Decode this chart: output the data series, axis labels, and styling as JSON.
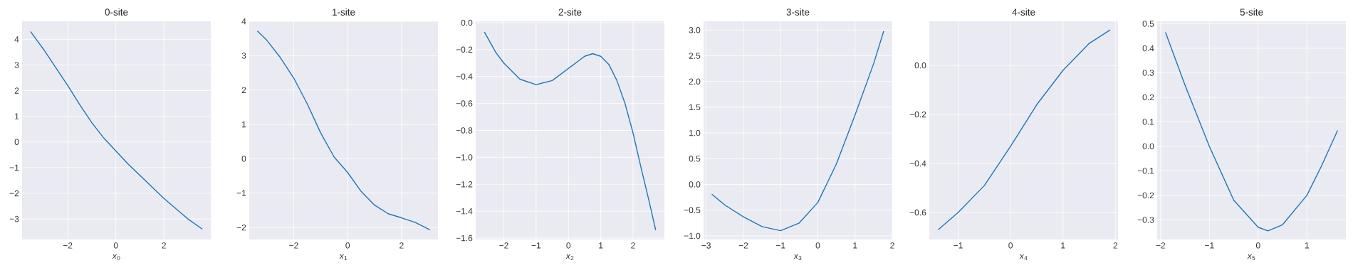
{
  "chart_data": [
    {
      "type": "line",
      "title": "0-site",
      "xlabel": "*x*$_{0}$",
      "color": "#1f77b4",
      "grid": true,
      "x": [
        -3.55,
        -3,
        -2.5,
        -2,
        -1.5,
        -1,
        -0.5,
        0,
        0.5,
        1,
        1.5,
        2,
        2.5,
        3,
        3.6
      ],
      "values": [
        4.3,
        3.6,
        2.9,
        2.2,
        1.45,
        0.75,
        0.15,
        -0.35,
        -0.85,
        -1.3,
        -1.75,
        -2.2,
        -2.6,
        -3.0,
        -3.4
      ],
      "xlim": [
        -3.9,
        3.95
      ],
      "ylim": [
        -3.8,
        4.7
      ],
      "xticks": [
        {
          "value": -2,
          "label": "−2"
        },
        0,
        2
      ],
      "yticks": [
        {
          "value": -3,
          "label": "−3"
        },
        {
          "value": -2,
          "label": "−2"
        },
        {
          "value": -1,
          "label": "−1"
        },
        0,
        1,
        2,
        3,
        4
      ]
    },
    {
      "type": "line",
      "title": "1-site",
      "xlabel": "*x*$_{1}$",
      "color": "#1f77b4",
      "grid": true,
      "x": [
        -3.35,
        -3,
        -2.5,
        -2,
        -1.5,
        -1,
        -0.5,
        0,
        0.5,
        1,
        1.5,
        2,
        2.5,
        3.05
      ],
      "values": [
        3.72,
        3.45,
        2.95,
        2.35,
        1.6,
        0.75,
        0.05,
        -0.4,
        -0.95,
        -1.35,
        -1.6,
        -1.72,
        -1.85,
        -2.07
      ],
      "xlim": [
        -3.65,
        3.35
      ],
      "ylim": [
        -2.35,
        4.0
      ],
      "xticks": [
        {
          "value": -2,
          "label": "−2"
        },
        0,
        2
      ],
      "yticks": [
        {
          "value": -2,
          "label": "−2"
        },
        {
          "value": -1,
          "label": "−1"
        },
        0,
        1,
        2,
        3,
        4
      ]
    },
    {
      "type": "line",
      "title": "2-site",
      "xlabel": "*x*$_{2}$",
      "color": "#1f77b4",
      "grid": true,
      "x": [
        -2.6,
        -2.25,
        -2,
        -1.5,
        -1,
        -0.5,
        0,
        0.5,
        0.75,
        1,
        1.25,
        1.5,
        1.75,
        2,
        2.25,
        2.5,
        2.7
      ],
      "values": [
        -0.07,
        -0.22,
        -0.3,
        -0.42,
        -0.46,
        -0.43,
        -0.34,
        -0.25,
        -0.23,
        -0.25,
        -0.31,
        -0.43,
        -0.6,
        -0.82,
        -1.08,
        -1.33,
        -1.54
      ],
      "xlim": [
        -2.87,
        2.97
      ],
      "ylim": [
        -1.61,
        0.01
      ],
      "xticks": [
        {
          "value": -2,
          "label": "−2"
        },
        {
          "value": -1,
          "label": "−1"
        },
        0,
        1,
        2
      ],
      "yticks": [
        {
          "value": -1.6,
          "label": "−1.6"
        },
        {
          "value": -1.4,
          "label": "−1.4"
        },
        {
          "value": -1.2,
          "label": "−1.2"
        },
        {
          "value": -1.0,
          "label": "−1.0"
        },
        {
          "value": -0.8,
          "label": "−0.8"
        },
        {
          "value": -0.6,
          "label": "−0.6"
        },
        {
          "value": -0.4,
          "label": "−0.4"
        },
        {
          "value": -0.2,
          "label": "−0.2"
        },
        {
          "value": 0,
          "label": "0.0"
        }
      ]
    },
    {
      "type": "line",
      "title": "3-site",
      "xlabel": "*x*$_{3}$",
      "color": "#1f77b4",
      "grid": true,
      "x": [
        -2.85,
        -2.5,
        -2,
        -1.5,
        -1,
        -0.5,
        0,
        0.5,
        1,
        1.5,
        1.77
      ],
      "values": [
        -0.19,
        -0.4,
        -0.63,
        -0.82,
        -0.9,
        -0.75,
        -0.35,
        0.4,
        1.35,
        2.35,
        2.98
      ],
      "xlim": [
        -3.07,
        2.0
      ],
      "ylim": [
        -1.07,
        3.17
      ],
      "xticks": [
        {
          "value": -3,
          "label": "−3"
        },
        {
          "value": -2,
          "label": "−2"
        },
        {
          "value": -1,
          "label": "−1"
        },
        0,
        1,
        2
      ],
      "yticks": [
        {
          "value": -1.0,
          "label": "−1.0"
        },
        {
          "value": -0.5,
          "label": "−0.5"
        },
        {
          "value": 0,
          "label": "0.0"
        },
        0.5,
        {
          "value": 1,
          "label": "1.0"
        },
        1.5,
        {
          "value": 2,
          "label": "2.0"
        },
        2.5,
        {
          "value": 3,
          "label": "3.0"
        }
      ]
    },
    {
      "type": "line",
      "title": "4-site",
      "xlabel": "*x*$_{4}$",
      "color": "#1f77b4",
      "grid": true,
      "x": [
        -1.38,
        -1,
        -0.5,
        0,
        0.5,
        1,
        1.5,
        1.9
      ],
      "values": [
        -0.67,
        -0.6,
        -0.49,
        -0.33,
        -0.16,
        -0.02,
        0.09,
        0.145
      ],
      "xlim": [
        -1.55,
        2.05
      ],
      "ylim": [
        -0.71,
        0.18
      ],
      "xticks": [
        {
          "value": -1,
          "label": "−1"
        },
        0,
        1,
        2
      ],
      "yticks": [
        {
          "value": -0.6,
          "label": "−0.6"
        },
        {
          "value": -0.4,
          "label": "−0.4"
        },
        {
          "value": -0.2,
          "label": "−0.2"
        },
        {
          "value": 0,
          "label": "0.0"
        }
      ]
    },
    {
      "type": "line",
      "title": "5-site",
      "xlabel": "*x*$_{5}$",
      "color": "#1f77b4",
      "grid": true,
      "x": [
        -1.9,
        -1.5,
        -1,
        -0.5,
        0,
        0.2,
        0.5,
        1,
        1.3,
        1.63
      ],
      "values": [
        0.465,
        0.25,
        0.0,
        -0.22,
        -0.33,
        -0.345,
        -0.32,
        -0.2,
        -0.08,
        0.065
      ],
      "xlim": [
        -2.07,
        1.8
      ],
      "ylim": [
        -0.38,
        0.51
      ],
      "xticks": [
        {
          "value": -2,
          "label": "−2"
        },
        {
          "value": -1,
          "label": "−1"
        },
        0,
        1
      ],
      "yticks": [
        {
          "value": -0.3,
          "label": "−0.3"
        },
        {
          "value": -0.2,
          "label": "−0.2"
        },
        {
          "value": -0.1,
          "label": "−0.1"
        },
        {
          "value": 0,
          "label": "0.0"
        },
        0.1,
        0.2,
        0.3,
        0.4,
        0.5
      ]
    }
  ]
}
